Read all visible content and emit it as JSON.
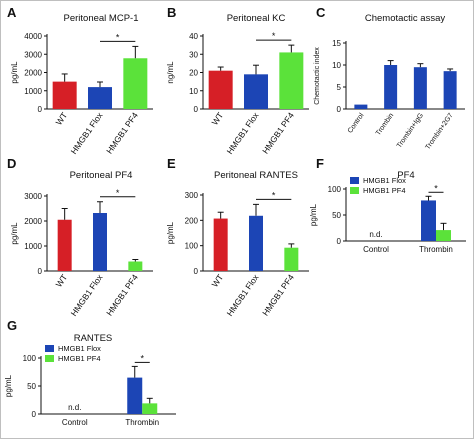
{
  "colors": {
    "wt": "#d61f26",
    "flox": "#1c45b5",
    "pf4": "#5be23a",
    "control": "#1c45b5"
  },
  "chart_data": [
    {
      "panel": "A",
      "type": "bar",
      "title": "Peritoneal MCP-1",
      "ylabel": "pg/mL",
      "ylim": [
        0,
        4000
      ],
      "yticks": [
        0,
        1000,
        2000,
        3000,
        4000
      ],
      "categories": [
        "WT",
        "HMGB1 Flox",
        "HMGB1 PF4"
      ],
      "values": [
        1500,
        1200,
        2780
      ],
      "errors": [
        420,
        280,
        650
      ],
      "color_keys": [
        "wt",
        "flox",
        "pf4"
      ],
      "significance": [
        {
          "from": 1,
          "to": 2,
          "label": "*"
        }
      ]
    },
    {
      "panel": "B",
      "type": "bar",
      "title": "Peritoneal KC",
      "ylabel": "ng/mL",
      "ylim": [
        0,
        40
      ],
      "yticks": [
        0,
        10,
        20,
        30,
        40
      ],
      "categories": [
        "WT",
        "HMGB1 Flox",
        "HMGB1 PF4"
      ],
      "values": [
        21,
        19,
        31
      ],
      "errors": [
        2,
        5,
        4
      ],
      "color_keys": [
        "wt",
        "flox",
        "pf4"
      ],
      "significance": [
        {
          "from": 1,
          "to": 2,
          "label": "*"
        }
      ]
    },
    {
      "panel": "C",
      "type": "bar",
      "title": "Chemotactic assay",
      "ylabel": "Chemotactic index",
      "ylim": [
        0,
        15
      ],
      "yticks": [
        0,
        5,
        10,
        15
      ],
      "categories": [
        "Control",
        "Trombin",
        "Trombin+IgG",
        "Trombin+2G7"
      ],
      "values": [
        1,
        10,
        9.5,
        8.6
      ],
      "errors": [
        0,
        1,
        0.8,
        0.5
      ],
      "color_keys": [
        "control",
        "control",
        "control",
        "control"
      ],
      "significance": []
    },
    {
      "panel": "D",
      "type": "bar",
      "title": "Peritoneal PF4",
      "ylabel": "pg/mL",
      "ylim": [
        0,
        3000
      ],
      "yticks": [
        0,
        1000,
        2000,
        3000
      ],
      "categories": [
        "WT",
        "HMGB1 Flox",
        "HMGB1 PF4"
      ],
      "values": [
        2050,
        2320,
        380
      ],
      "errors": [
        450,
        450,
        80
      ],
      "color_keys": [
        "wt",
        "flox",
        "pf4"
      ],
      "significance": [
        {
          "from": 1,
          "to": 2,
          "label": "*"
        }
      ]
    },
    {
      "panel": "E",
      "type": "bar",
      "title": "Peritoneal RANTES",
      "ylabel": "pg/mL",
      "ylim": [
        0,
        300
      ],
      "yticks": [
        0,
        100,
        200,
        300
      ],
      "categories": [
        "WT",
        "HMGB1 Flox",
        "HMGB1 PF4"
      ],
      "values": [
        207,
        218,
        92
      ],
      "errors": [
        25,
        45,
        15
      ],
      "color_keys": [
        "wt",
        "flox",
        "pf4"
      ],
      "significance": [
        {
          "from": 1,
          "to": 2,
          "label": "*"
        }
      ]
    },
    {
      "panel": "F",
      "type": "bar",
      "title": "PF4",
      "ylabel": "pg/mL",
      "ylim": [
        0,
        100
      ],
      "yticks": [
        0,
        50,
        100
      ],
      "categories": [
        "Control",
        "Thrombin"
      ],
      "series": [
        {
          "name": "HMGB1 Flox",
          "color_key": "flox",
          "values": [
            null,
            78
          ],
          "errors": [
            0,
            8
          ]
        },
        {
          "name": "HMGB1 PF4",
          "color_key": "pf4",
          "values": [
            null,
            21
          ],
          "errors": [
            0,
            13
          ]
        }
      ],
      "annotations": [
        {
          "category": 0,
          "text": "n.d."
        }
      ],
      "significance": [
        {
          "category": 1,
          "label": "*"
        }
      ],
      "legend": "top-left"
    },
    {
      "panel": "G",
      "type": "bar",
      "title": "RANTES",
      "ylabel": "pg/mL",
      "ylim": [
        0,
        100
      ],
      "yticks": [
        0,
        50,
        100
      ],
      "categories": [
        "Control",
        "Thrombin"
      ],
      "series": [
        {
          "name": "HMGB1 Flox",
          "color_key": "flox",
          "values": [
            null,
            65
          ],
          "errors": [
            0,
            20
          ]
        },
        {
          "name": "HMGB1 PF4",
          "color_key": "pf4",
          "values": [
            null,
            19
          ],
          "errors": [
            0,
            9
          ]
        }
      ],
      "annotations": [
        {
          "category": 0,
          "text": "n.d."
        }
      ],
      "significance": [
        {
          "category": 1,
          "label": "*"
        }
      ],
      "legend": "top-left"
    }
  ]
}
